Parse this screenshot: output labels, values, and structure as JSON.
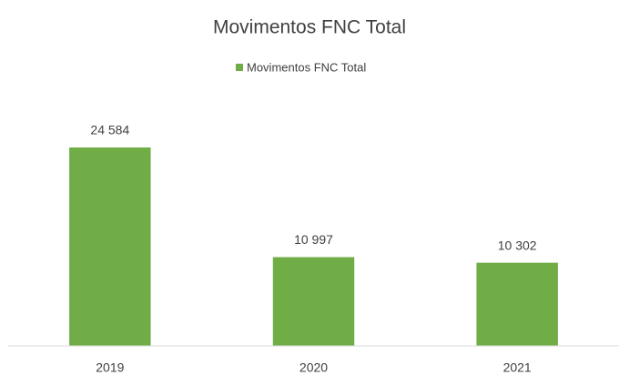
{
  "chart_data": {
    "type": "bar",
    "title": "Movimentos FNC Total",
    "categories": [
      "2019",
      "2020",
      "2021"
    ],
    "series": [
      {
        "name": "Movimentos FNC Total",
        "color": "#70ad47",
        "values": [
          24584,
          10997,
          10302
        ],
        "value_labels": [
          "24 584",
          "10 997",
          "10 302"
        ]
      }
    ],
    "ylim": [
      0,
      30000
    ],
    "legend": "top"
  }
}
